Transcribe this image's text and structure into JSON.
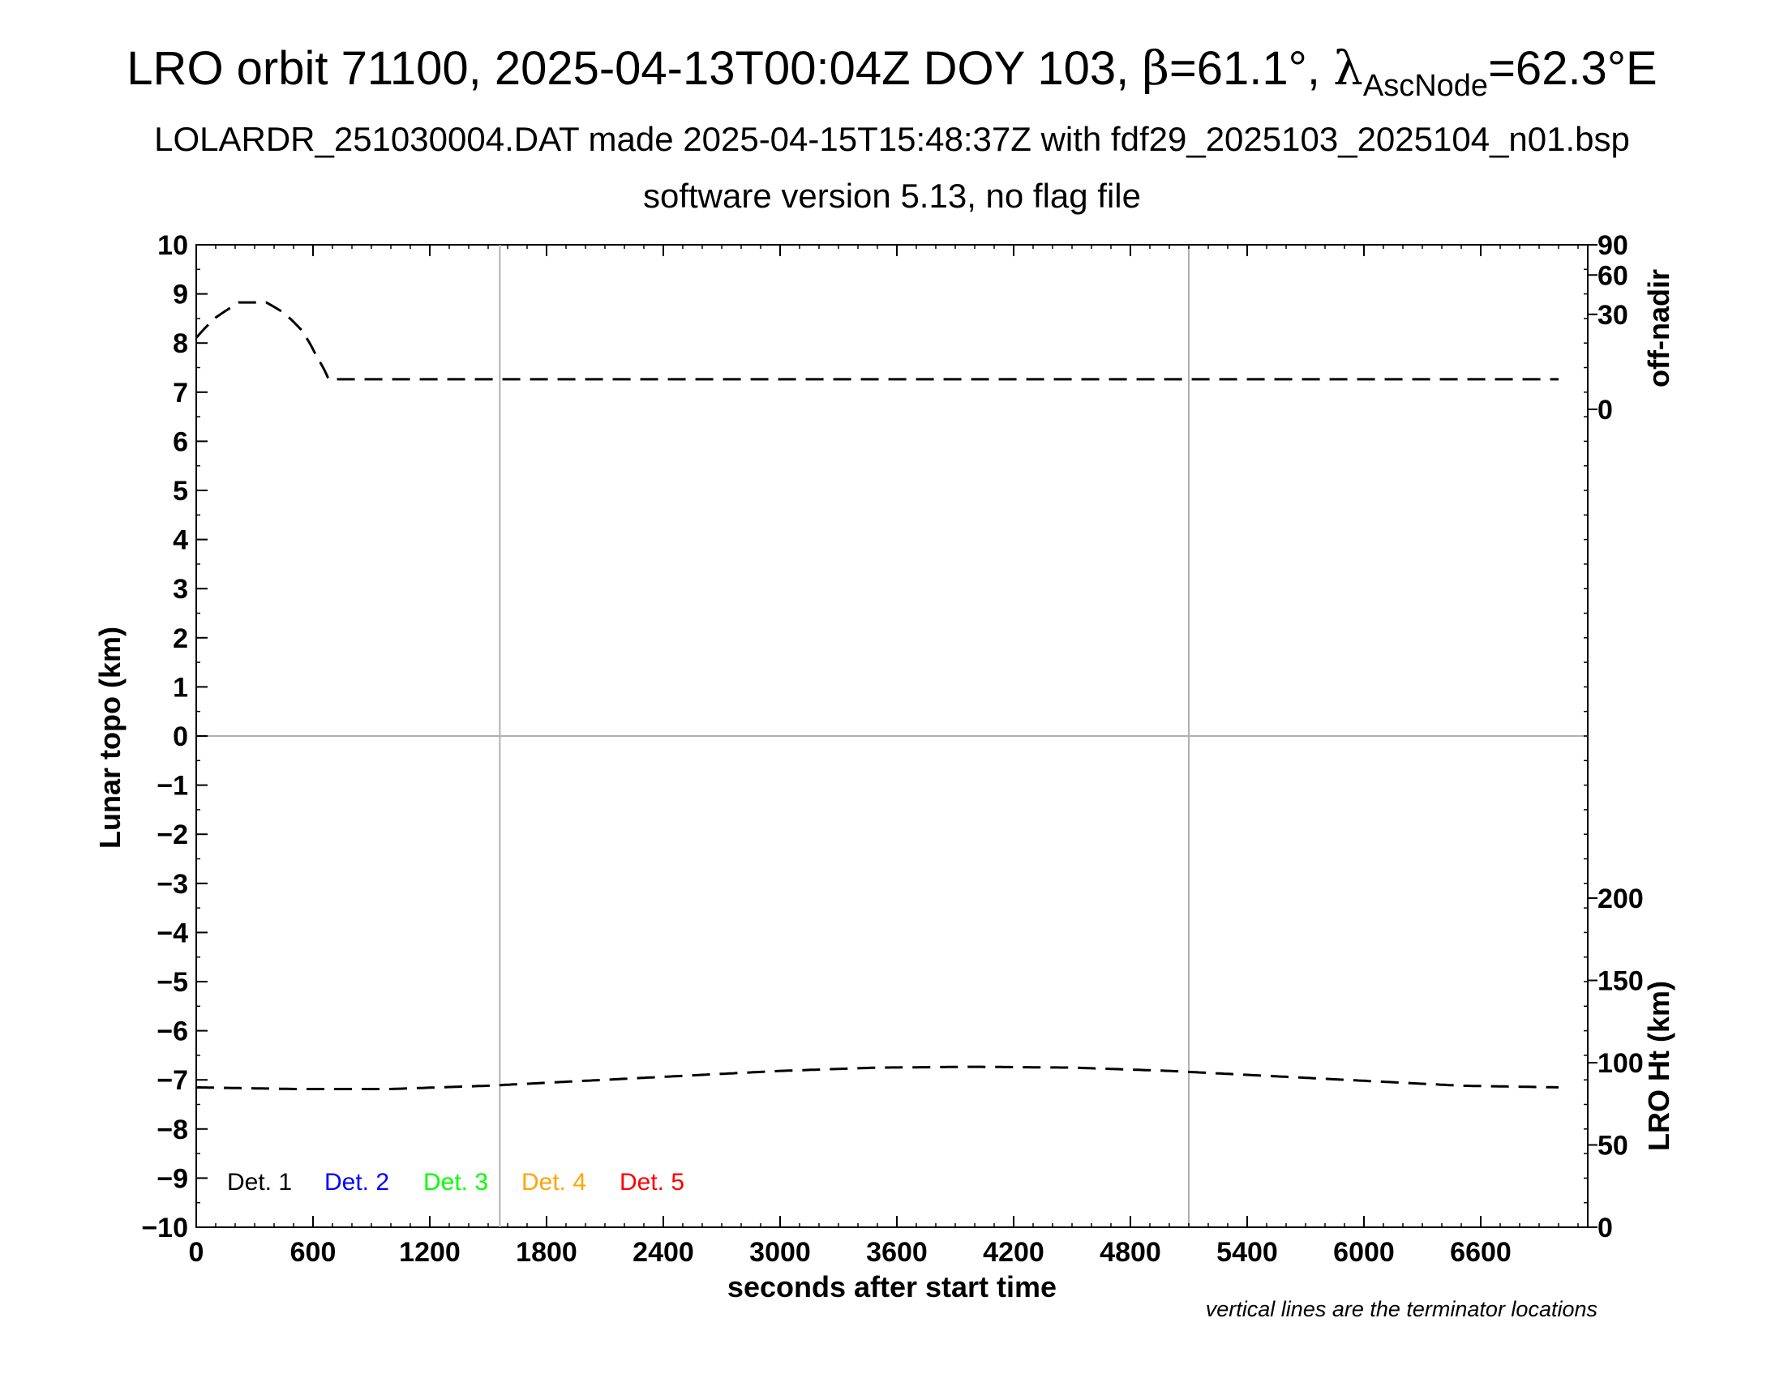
{
  "header": {
    "title_main": "LRO orbit 71100, 2025-04-13T00:04Z DOY 103, ",
    "beta_symbol": "β",
    "beta_value": "=61.1°, ",
    "lambda_symbol": "λ",
    "lambda_subscript": "AscNode",
    "lambda_value": "=62.3°E",
    "subtitle": "LOLARDR_251030004.DAT made 2025-04-15T15:48:37Z with fdf29_2025103_2025104_n01.bsp",
    "subtitle2": "software version 5.13, no flag file"
  },
  "footnote": "vertical lines are the terminator locations",
  "colors": {
    "det1": "#000000",
    "det2": "#0000ff",
    "det3": "#00ff00",
    "det4": "#ffa500",
    "det5": "#ff0000",
    "grid": "#b0b0b0"
  },
  "chart_data": {
    "type": "line",
    "xlabel": "seconds after start time",
    "ylabel": "Lunar topo (km)",
    "xlim": [
      0,
      7150
    ],
    "ylim": [
      -10,
      10
    ],
    "x_ticks": [
      0,
      600,
      1200,
      1800,
      2400,
      3000,
      3600,
      4200,
      4800,
      5400,
      6000,
      6600
    ],
    "y_ticks": [
      10,
      9,
      8,
      7,
      6,
      5,
      4,
      3,
      2,
      1,
      0,
      -1,
      -2,
      -3,
      -4,
      -5,
      -6,
      -7,
      -8,
      -9,
      -10
    ],
    "terminator_lines_x": [
      1560,
      5100
    ],
    "zero_line_y": 0,
    "right_axis_top": {
      "label": "off-nadir",
      "ticks": [
        90,
        60,
        30,
        0
      ],
      "unit_range": [
        0,
        90
      ]
    },
    "right_axis_bottom": {
      "label": "LRO Ht (km)",
      "ticks": [
        200,
        150,
        100,
        50,
        0
      ],
      "unit_range": [
        0,
        200
      ]
    },
    "legend": [
      "Det. 1",
      "Det. 2",
      "Det. 3",
      "Det. 4",
      "Det. 5"
    ],
    "series": [
      {
        "name": "off-nadir",
        "axis": "right_top",
        "style": "dashed",
        "x": [
          0,
          100,
          220,
          360,
          450,
          540,
          620,
          680,
          1200,
          2400,
          3600,
          4800,
          5400,
          6600,
          7000
        ],
        "y": [
          17,
          28,
          38,
          38,
          31,
          21,
          9,
          3,
          3,
          3,
          3,
          3,
          3,
          3,
          3
        ]
      },
      {
        "name": "LRO Ht (km)",
        "axis": "right_bottom",
        "style": "dashed",
        "x": [
          0,
          500,
          1000,
          1500,
          2000,
          2500,
          3000,
          3500,
          4000,
          4500,
          5000,
          5500,
          6000,
          6500,
          7000
        ],
        "y": [
          85,
          84,
          84,
          86,
          89,
          92,
          95,
          97,
          97.5,
          97,
          95,
          92,
          89,
          86,
          85
        ]
      }
    ]
  }
}
